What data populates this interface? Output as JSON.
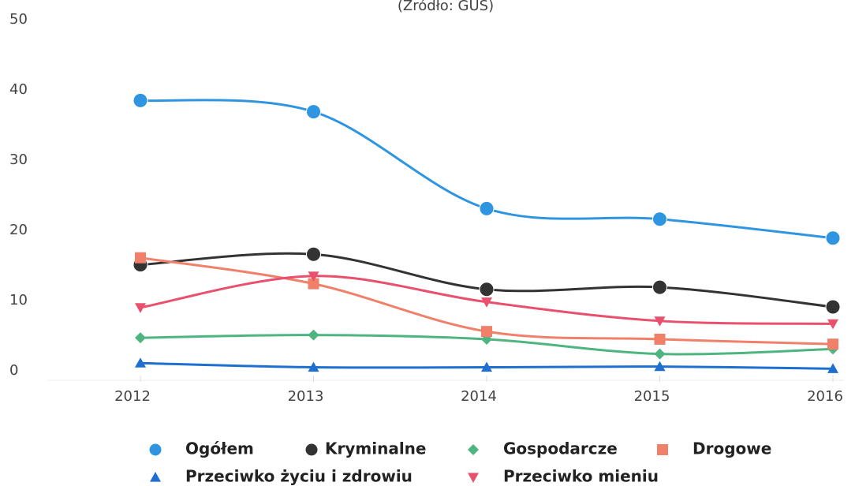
{
  "chart_data": {
    "type": "line",
    "subtitle": "(Źródło: GUS)",
    "categories": [
      "2012",
      "2013",
      "2014",
      "2015",
      "2016"
    ],
    "ylim": [
      0,
      50
    ],
    "yticks": [
      0,
      10,
      20,
      30,
      40,
      50
    ],
    "series": [
      {
        "name": "Ogółem",
        "color": "#2f95e0",
        "marker": "circle",
        "values": [
          38.5,
          36.9,
          23.1,
          21.6,
          18.9
        ]
      },
      {
        "name": "Kryminalne",
        "color": "#333333",
        "marker": "circle",
        "values": [
          15.1,
          16.6,
          11.6,
          11.9,
          9.1
        ]
      },
      {
        "name": "Gospodarcze",
        "color": "#4fb580",
        "marker": "diamond",
        "values": [
          4.7,
          5.1,
          4.5,
          2.4,
          3.1
        ]
      },
      {
        "name": "Drogowe",
        "color": "#f0806a",
        "marker": "square",
        "values": [
          16.1,
          12.4,
          5.6,
          4.5,
          3.8
        ]
      },
      {
        "name": "Przeciwko życiu i zdrowiu",
        "color": "#1f6fd0",
        "marker": "triangle",
        "values": [
          1.1,
          0.5,
          0.5,
          0.6,
          0.3
        ]
      },
      {
        "name": "Przeciwko mieniu",
        "color": "#e8506e",
        "marker": "triangle-down",
        "values": [
          9.0,
          13.5,
          9.8,
          7.1,
          6.7
        ]
      }
    ]
  }
}
